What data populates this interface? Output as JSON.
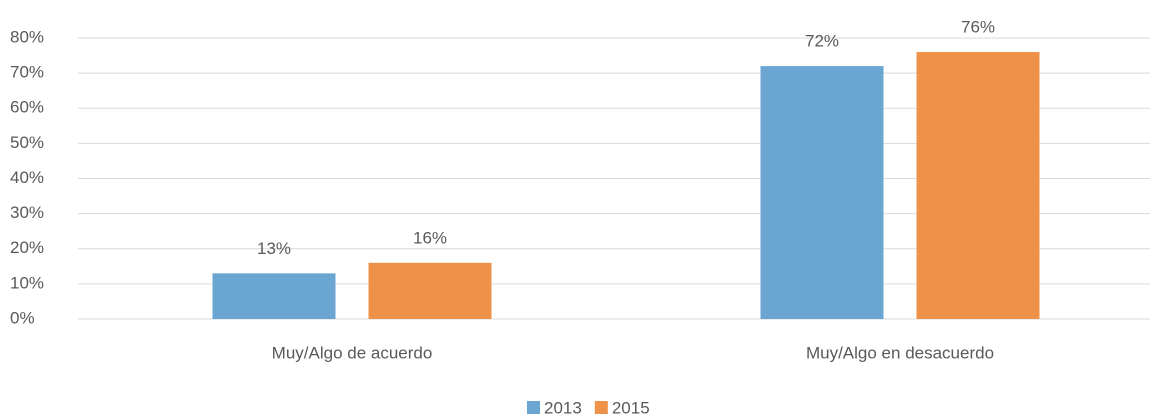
{
  "chart_data": {
    "type": "bar",
    "categories": [
      "Muy/Algo de acuerdo",
      "Muy/Algo en desacuerdo"
    ],
    "series": [
      {
        "name": "2013",
        "color": "#6ba5d2",
        "values": [
          13,
          72
        ],
        "value_labels": [
          "13%",
          "72%"
        ]
      },
      {
        "name": "2015",
        "color": "#ee9149",
        "values": [
          16,
          76
        ],
        "value_labels": [
          "16%",
          "76%"
        ]
      }
    ],
    "ylim": [
      0,
      80
    ],
    "yticks": [
      {
        "value": 0,
        "label": "0%"
      },
      {
        "value": 10,
        "label": "10%"
      },
      {
        "value": 20,
        "label": "20%"
      },
      {
        "value": 30,
        "label": "30%"
      },
      {
        "value": 40,
        "label": "40%"
      },
      {
        "value": 50,
        "label": "50%"
      },
      {
        "value": 60,
        "label": "60%"
      },
      {
        "value": 70,
        "label": "70%"
      },
      {
        "value": 80,
        "label": "80%"
      }
    ],
    "grid": true,
    "legend": "bottom"
  }
}
